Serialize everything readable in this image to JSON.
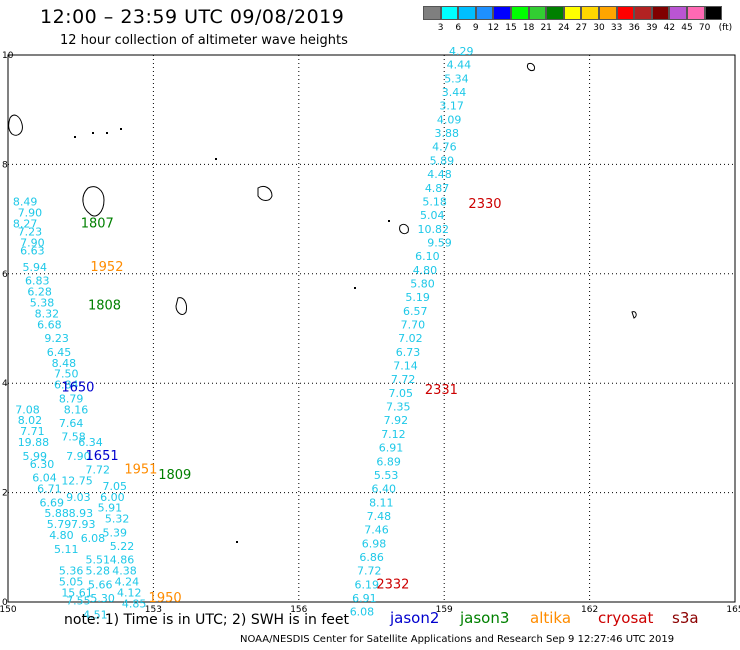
{
  "title": "12:00 – 23:59 UTC 09/08/2019",
  "subtitle": "12 hour collection of altimeter wave heights",
  "legend": {
    "unit": "(ft)",
    "levels": [
      "3",
      "6",
      "9",
      "12",
      "15",
      "18",
      "21",
      "24",
      "27",
      "30",
      "33",
      "36",
      "39",
      "42",
      "45",
      "70"
    ],
    "colors": [
      "#7f7f7f",
      "#00ffff",
      "#00bfff",
      "#1e90ff",
      "#0000ff",
      "#00ff00",
      "#32cd32",
      "#008000",
      "#ffff00",
      "#ffd700",
      "#ffa500",
      "#ff0000",
      "#b22222",
      "#800000",
      "#ba55d3",
      "#ff69b4",
      "#000000"
    ]
  },
  "map": {
    "lon_ticks": [
      "150",
      "153",
      "156",
      "159",
      "162",
      "165"
    ],
    "lat_ticks": [
      "0",
      "2",
      "4",
      "6",
      "8",
      "10"
    ],
    "passes": [
      {
        "sat": "jason3",
        "time": "1807",
        "lat": 6.85,
        "lon": 151.5
      },
      {
        "sat": "altika",
        "time": "1952",
        "lat": 6.05,
        "lon": 151.7
      },
      {
        "sat": "jason3",
        "time": "1808",
        "lat": 5.35,
        "lon": 151.65
      },
      {
        "sat": "jason2",
        "time": "1650",
        "lat": 3.85,
        "lon": 151.1
      },
      {
        "sat": "jason2",
        "time": "1651",
        "lat": 2.6,
        "lon": 151.6
      },
      {
        "sat": "altika",
        "time": "1951",
        "lat": 2.35,
        "lon": 152.4
      },
      {
        "sat": "jason3",
        "time": "1809",
        "lat": 2.25,
        "lon": 153.1
      },
      {
        "sat": "altika",
        "time": "1950",
        "lat": 0.0,
        "lon": 152.9
      },
      {
        "sat": "cryosat",
        "time": "2330",
        "lat": 7.2,
        "lon": 159.5
      },
      {
        "sat": "cryosat",
        "time": "2331",
        "lat": 3.8,
        "lon": 158.6
      },
      {
        "sat": "cryosat",
        "time": "2332",
        "lat": 0.25,
        "lon": 157.6
      }
    ],
    "track_east": [
      {
        "v": "4.29",
        "lat": 10.0,
        "lon": 159.1
      },
      {
        "v": "4.44",
        "lat": 9.75,
        "lon": 159.05
      },
      {
        "v": "5.34",
        "lat": 9.5,
        "lon": 159.0
      },
      {
        "v": "3.44",
        "lat": 9.25,
        "lon": 158.95
      },
      {
        "v": "3.17",
        "lat": 9.0,
        "lon": 158.9
      },
      {
        "v": "4.09",
        "lat": 8.75,
        "lon": 158.85
      },
      {
        "v": "3.88",
        "lat": 8.5,
        "lon": 158.8
      },
      {
        "v": "4.76",
        "lat": 8.25,
        "lon": 158.75
      },
      {
        "v": "5.89",
        "lat": 8.0,
        "lon": 158.7
      },
      {
        "v": "4.48",
        "lat": 7.75,
        "lon": 158.65
      },
      {
        "v": "4.87",
        "lat": 7.5,
        "lon": 158.6
      },
      {
        "v": "5.18",
        "lat": 7.25,
        "lon": 158.55
      },
      {
        "v": "5.04",
        "lat": 7.0,
        "lon": 158.5
      },
      {
        "v": "10.82",
        "lat": 6.75,
        "lon": 158.45
      },
      {
        "v": "9.59",
        "lat": 6.5,
        "lon": 158.65
      },
      {
        "v": "6.10",
        "lat": 6.25,
        "lon": 158.4
      },
      {
        "v": "4.80",
        "lat": 6.0,
        "lon": 158.35
      },
      {
        "v": "5.80",
        "lat": 5.75,
        "lon": 158.3
      },
      {
        "v": "5.19",
        "lat": 5.5,
        "lon": 158.2
      },
      {
        "v": "6.57",
        "lat": 5.25,
        "lon": 158.15
      },
      {
        "v": "7.70",
        "lat": 5.0,
        "lon": 158.1
      },
      {
        "v": "7.02",
        "lat": 4.75,
        "lon": 158.05
      },
      {
        "v": "6.73",
        "lat": 4.5,
        "lon": 158.0
      },
      {
        "v": "7.14",
        "lat": 4.25,
        "lon": 157.95
      },
      {
        "v": "7.72",
        "lat": 4.0,
        "lon": 157.9
      },
      {
        "v": "7.05",
        "lat": 3.75,
        "lon": 157.85
      },
      {
        "v": "7.35",
        "lat": 3.5,
        "lon": 157.8
      },
      {
        "v": "7.92",
        "lat": 3.25,
        "lon": 157.75
      },
      {
        "v": "7.12",
        "lat": 3.0,
        "lon": 157.7
      },
      {
        "v": "6.91",
        "lat": 2.75,
        "lon": 157.65
      },
      {
        "v": "6.89",
        "lat": 2.5,
        "lon": 157.6
      },
      {
        "v": "5.53",
        "lat": 2.25,
        "lon": 157.55
      },
      {
        "v": "6.40",
        "lat": 2.0,
        "lon": 157.5
      },
      {
        "v": "8.11",
        "lat": 1.75,
        "lon": 157.45
      },
      {
        "v": "7.48",
        "lat": 1.5,
        "lon": 157.4
      },
      {
        "v": "7.46",
        "lat": 1.25,
        "lon": 157.35
      },
      {
        "v": "6.98",
        "lat": 1.0,
        "lon": 157.3
      },
      {
        "v": "6.86",
        "lat": 0.75,
        "lon": 157.25
      },
      {
        "v": "7.72",
        "lat": 0.5,
        "lon": 157.2
      },
      {
        "v": "6.19",
        "lat": 0.25,
        "lon": 157.15
      },
      {
        "v": "6.91",
        "lat": 0.0,
        "lon": 157.1
      },
      {
        "v": "6.08",
        "lat": -0.25,
        "lon": 157.05
      }
    ],
    "track_west": [
      {
        "v": "8.49",
        "lat": 7.25,
        "lon": 150.1
      },
      {
        "v": "7.90",
        "lat": 7.05,
        "lon": 150.2
      },
      {
        "v": "8.27",
        "lat": 6.85,
        "lon": 150.1
      },
      {
        "v": "7.23",
        "lat": 6.7,
        "lon": 150.2
      },
      {
        "v": "7.90",
        "lat": 6.5,
        "lon": 150.25
      },
      {
        "v": "6.63",
        "lat": 6.35,
        "lon": 150.25
      },
      {
        "v": "5.94",
        "lat": 6.05,
        "lon": 150.3
      },
      {
        "v": "6.83",
        "lat": 5.8,
        "lon": 150.35
      },
      {
        "v": "6.28",
        "lat": 5.6,
        "lon": 150.4
      },
      {
        "v": "5.38",
        "lat": 5.4,
        "lon": 150.45
      },
      {
        "v": "8.32",
        "lat": 5.2,
        "lon": 150.55
      },
      {
        "v": "6.68",
        "lat": 5.0,
        "lon": 150.6
      },
      {
        "v": "9.23",
        "lat": 4.75,
        "lon": 150.75
      },
      {
        "v": "6.45",
        "lat": 4.5,
        "lon": 150.8
      },
      {
        "v": "8.48",
        "lat": 4.3,
        "lon": 150.9
      },
      {
        "v": "7.50",
        "lat": 4.1,
        "lon": 150.95
      },
      {
        "v": "6.84",
        "lat": 3.9,
        "lon": 150.95
      },
      {
        "v": "8.79",
        "lat": 3.65,
        "lon": 151.05
      },
      {
        "v": "7.08",
        "lat": 3.45,
        "lon": 150.15
      },
      {
        "v": "8.16",
        "lat": 3.45,
        "lon": 151.15
      },
      {
        "v": "8.02",
        "lat": 3.25,
        "lon": 150.2
      },
      {
        "v": "7.64",
        "lat": 3.2,
        "lon": 151.05
      },
      {
        "v": "7.71",
        "lat": 3.05,
        "lon": 150.25
      },
      {
        "v": "7.58",
        "lat": 2.95,
        "lon": 151.1
      },
      {
        "v": "6.34",
        "lat": 2.85,
        "lon": 151.45
      },
      {
        "v": "5.99",
        "lat": 2.6,
        "lon": 150.3
      },
      {
        "v": "7.90",
        "lat": 2.6,
        "lon": 151.2
      },
      {
        "v": "6.30",
        "lat": 2.45,
        "lon": 150.45
      },
      {
        "v": "7.72",
        "lat": 2.35,
        "lon": 151.6
      },
      {
        "v": "6.04",
        "lat": 2.2,
        "lon": 150.5
      },
      {
        "v": "7.05",
        "lat": 2.05,
        "lon": 151.95
      },
      {
        "v": "6.71",
        "lat": 2.0,
        "lon": 150.6
      },
      {
        "v": "9.03",
        "lat": 1.85,
        "lon": 151.2
      },
      {
        "v": "6.00",
        "lat": 1.85,
        "lon": 151.9
      },
      {
        "v": "6.69",
        "lat": 1.75,
        "lon": 150.65
      },
      {
        "v": "5.91",
        "lat": 1.65,
        "lon": 151.85
      },
      {
        "v": "5.88",
        "lat": 1.55,
        "lon": 150.75
      },
      {
        "v": "5.32",
        "lat": 1.45,
        "lon": 152.0
      },
      {
        "v": "5.79",
        "lat": 1.35,
        "lon": 150.8
      },
      {
        "v": "7.93",
        "lat": 1.35,
        "lon": 151.3
      },
      {
        "v": "5.39",
        "lat": 1.2,
        "lon": 151.95
      },
      {
        "v": "4.80",
        "lat": 1.15,
        "lon": 150.85
      },
      {
        "v": "6.08",
        "lat": 1.1,
        "lon": 151.5
      },
      {
        "v": "5.22",
        "lat": 0.95,
        "lon": 152.1
      },
      {
        "v": "5.11",
        "lat": 0.9,
        "lon": 150.95
      },
      {
        "v": "5.51",
        "lat": 0.7,
        "lon": 151.6
      },
      {
        "v": "4.86",
        "lat": 0.7,
        "lon": 152.1
      },
      {
        "v": "5.36",
        "lat": 0.5,
        "lon": 151.05
      },
      {
        "v": "5.28",
        "lat": 0.5,
        "lon": 151.6
      },
      {
        "v": "4.38",
        "lat": 0.5,
        "lon": 152.15
      },
      {
        "v": "5.05",
        "lat": 0.3,
        "lon": 151.05
      },
      {
        "v": "5.66",
        "lat": 0.25,
        "lon": 151.65
      },
      {
        "v": "4.24",
        "lat": 0.3,
        "lon": 152.2
      },
      {
        "v": "4.12",
        "lat": 0.1,
        "lon": 152.25
      },
      {
        "v": "5.30",
        "lat": 0.0,
        "lon": 151.7
      },
      {
        "v": "7.55",
        "lat": -0.05,
        "lon": 151.2
      },
      {
        "v": "4.85",
        "lat": -0.1,
        "lon": 152.35
      },
      {
        "v": "4.51",
        "lat": -0.3,
        "lon": 151.55
      }
    ],
    "special_values": [
      {
        "v": "19.88",
        "lat": 2.85,
        "lon": 150.2,
        "color": "#008000"
      },
      {
        "v": "12.75",
        "lat": 2.15,
        "lon": 151.1,
        "color": "#b0d000"
      },
      {
        "v": "8.93",
        "lat": 1.55,
        "lon": 151.25,
        "color": "#008000"
      },
      {
        "v": "15.61",
        "lat": 0.1,
        "lon": 151.1,
        "color": "#6fc000"
      }
    ]
  },
  "note": "note:  1) Time is in UTC;  2) SWH is in feet",
  "satellites": [
    {
      "name": "jason2",
      "color": "#0000cd"
    },
    {
      "name": "jason3",
      "color": "#008000"
    },
    {
      "name": "altika",
      "color": "#ff8c00"
    },
    {
      "name": "cryosat",
      "color": "#cc0000"
    },
    {
      "name": "s3a",
      "color": "#8b0000"
    }
  ],
  "footer": "NOAA/NESDIS Center for Satellite Applications and Research    Sep  9 12:27:46 UTC 2019"
}
